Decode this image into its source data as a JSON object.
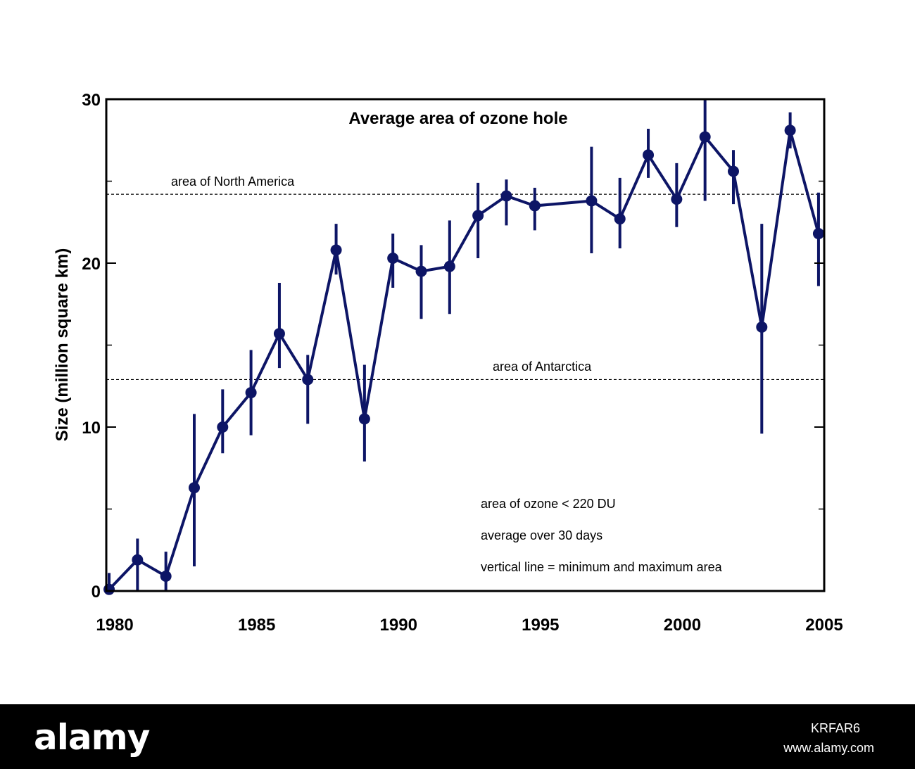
{
  "chart_data": {
    "type": "line",
    "title": "Average area of ozone hole",
    "ylabel": "Size (million square km)",
    "xlabel": "",
    "xlim": [
      1979.7,
      2005
    ],
    "ylim": [
      0,
      30
    ],
    "x_ticks": [
      1980,
      1985,
      1990,
      1995,
      2000,
      2005
    ],
    "y_ticks": [
      0,
      10,
      20,
      30
    ],
    "y_minor_ticks": [
      5,
      15,
      25
    ],
    "series": [
      {
        "color": "#0d1566",
        "points": [
          {
            "x": 1979.8,
            "y": 0.1,
            "min": 0.0,
            "max": 1.1
          },
          {
            "x": 1980.8,
            "y": 1.9,
            "min": 0.0,
            "max": 3.2
          },
          {
            "x": 1981.8,
            "y": 0.9,
            "min": 0.0,
            "max": 2.4
          },
          {
            "x": 1982.8,
            "y": 6.3,
            "min": 1.5,
            "max": 10.8
          },
          {
            "x": 1983.8,
            "y": 10.0,
            "min": 8.4,
            "max": 12.3
          },
          {
            "x": 1984.8,
            "y": 12.1,
            "min": 9.5,
            "max": 14.7
          },
          {
            "x": 1985.8,
            "y": 15.7,
            "min": 13.6,
            "max": 18.8
          },
          {
            "x": 1986.8,
            "y": 12.9,
            "min": 10.2,
            "max": 14.4
          },
          {
            "x": 1987.8,
            "y": 20.8,
            "min": 19.3,
            "max": 22.4
          },
          {
            "x": 1988.8,
            "y": 10.5,
            "min": 7.9,
            "max": 13.8
          },
          {
            "x": 1989.8,
            "y": 20.3,
            "min": 18.5,
            "max": 21.8
          },
          {
            "x": 1990.8,
            "y": 19.5,
            "min": 16.6,
            "max": 21.1
          },
          {
            "x": 1991.8,
            "y": 19.8,
            "min": 16.9,
            "max": 22.6
          },
          {
            "x": 1992.8,
            "y": 22.9,
            "min": 20.3,
            "max": 24.9
          },
          {
            "x": 1993.8,
            "y": 24.1,
            "min": 22.3,
            "max": 25.1
          },
          {
            "x": 1994.8,
            "y": 23.5,
            "min": 22.0,
            "max": 24.6
          },
          {
            "x": 1996.8,
            "y": 23.8,
            "min": 20.6,
            "max": 27.1
          },
          {
            "x": 1997.8,
            "y": 22.7,
            "min": 20.9,
            "max": 25.2
          },
          {
            "x": 1998.8,
            "y": 26.6,
            "min": 25.2,
            "max": 28.2
          },
          {
            "x": 1999.8,
            "y": 23.9,
            "min": 22.2,
            "max": 26.1
          },
          {
            "x": 2000.8,
            "y": 27.7,
            "min": 23.8,
            "max": 30.0
          },
          {
            "x": 2001.8,
            "y": 25.6,
            "min": 23.6,
            "max": 26.9
          },
          {
            "x": 2002.8,
            "y": 16.1,
            "min": 9.6,
            "max": 22.4
          },
          {
            "x": 2003.8,
            "y": 28.1,
            "min": 27.0,
            "max": 29.2
          },
          {
            "x": 2004.8,
            "y": 21.8,
            "min": 18.6,
            "max": 24.3
          }
        ]
      }
    ],
    "reference_lines": [
      {
        "label": "area of North America",
        "y": 24.2
      },
      {
        "label": "area of Antarctica",
        "y": 12.9
      }
    ],
    "annotations": [
      "area of ozone < 220 DU",
      "average over 30 days",
      "vertical line = minimum and maximum area"
    ],
    "grid": false,
    "legend": "none"
  },
  "footer": {
    "logo": "alamy",
    "image_id": "KRFAR6",
    "site": "www.alamy.com"
  }
}
